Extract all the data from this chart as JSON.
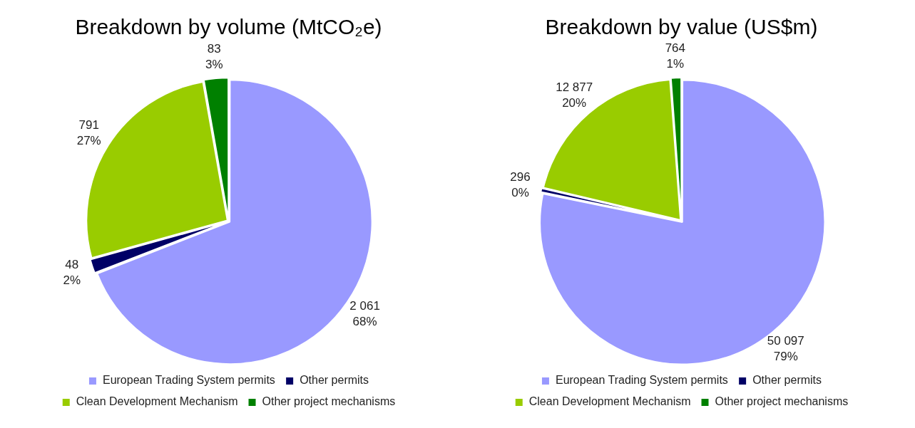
{
  "chart_data": [
    {
      "type": "pie",
      "title": "Breakdown by volume (MtCO₂e)",
      "categories": [
        "European Trading System permits",
        "Other permits",
        "Clean Development Mechanism",
        "Other project mechanisms"
      ],
      "values": [
        2061,
        48,
        791,
        83
      ],
      "colors": [
        "#9999ff",
        "#000066",
        "#99cc00",
        "#008000"
      ],
      "value_labels": [
        "2 061\n68%",
        "48\n2%",
        "791\n27%",
        "83\n3%"
      ],
      "legend": "bottom"
    },
    {
      "type": "pie",
      "title": "Breakdown by value (US$m)",
      "categories": [
        "European Trading System permits",
        "Other permits",
        "Clean Development Mechanism",
        "Other project mechanisms"
      ],
      "values": [
        50097,
        296,
        12877,
        764
      ],
      "colors": [
        "#9999ff",
        "#000066",
        "#99cc00",
        "#008000"
      ],
      "value_labels": [
        "50 097\n79%",
        "296\n0%",
        "12 877\n20%",
        "764\n1%"
      ],
      "legend": "bottom"
    }
  ]
}
